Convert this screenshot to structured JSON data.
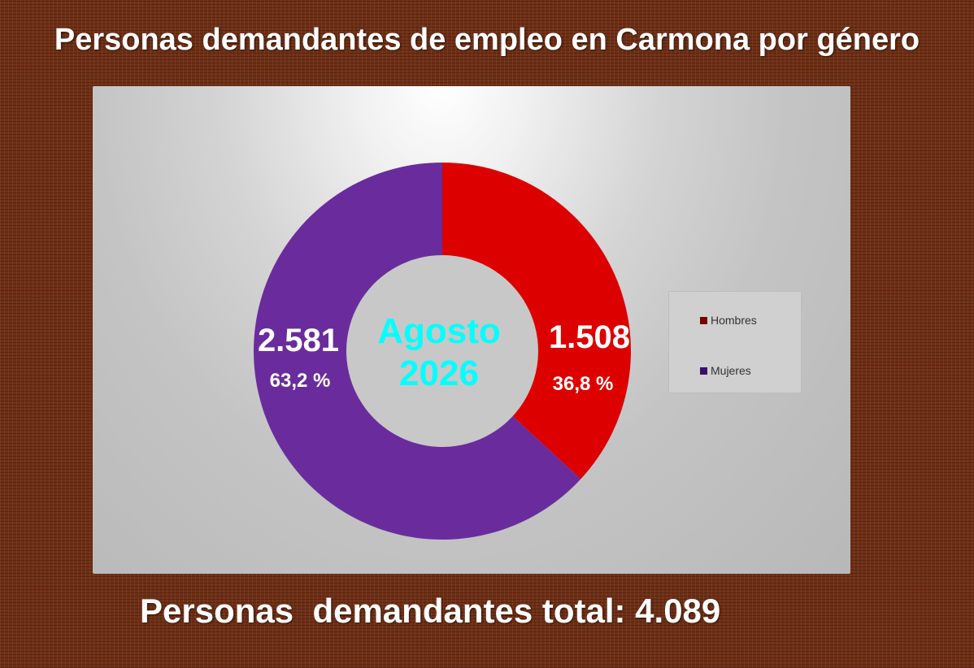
{
  "title": "Personas demandantes de empleo en Carmona por género",
  "center_label": {
    "line1": "Agosto",
    "line2": "2026"
  },
  "total_text": "Personas  demandantes total: 4.089",
  "colors": {
    "hombres": "#dd0000",
    "mujeres": "#6a2c9c",
    "legend_hombres": "#7a0000",
    "legend_mujeres": "#3a1066",
    "center_text": "#00ffff"
  },
  "chart_data": {
    "type": "pie",
    "subtype": "donut",
    "title": "Personas demandantes de empleo en Carmona por género",
    "series": [
      {
        "name": "Hombres",
        "value": 1508,
        "value_label": "1.508",
        "percent_label": "36,8 %"
      },
      {
        "name": "Mujeres",
        "value": 2581,
        "value_label": "2.581",
        "percent_label": "63,2 %"
      }
    ],
    "total": 4089,
    "legend_position": "right"
  }
}
